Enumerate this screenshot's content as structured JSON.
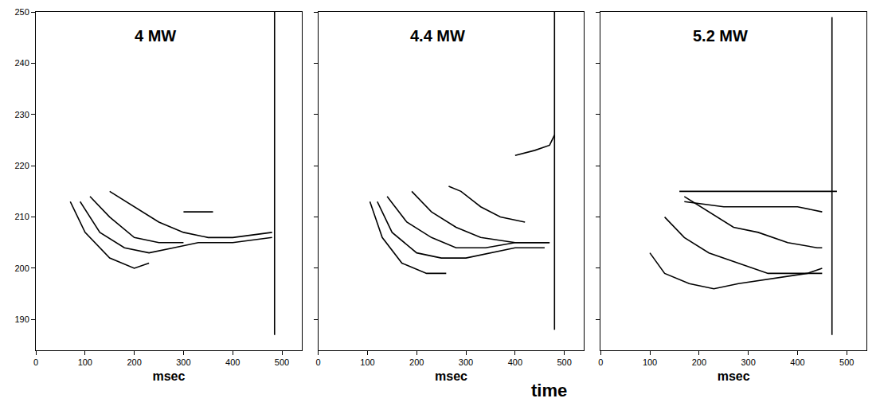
{
  "chart_data": [
    {
      "type": "line",
      "title": "4 MW",
      "xlabel": "msec",
      "color": "#000000",
      "xlim": [
        0,
        540
      ],
      "xticks": [
        0,
        100,
        200,
        300,
        400,
        500
      ],
      "ylim": [
        184,
        250
      ],
      "yticks": [
        190,
        200,
        210,
        220,
        230,
        240,
        250
      ],
      "series": [
        {
          "x": [
            70,
            100,
            150,
            200,
            230
          ],
          "values": [
            213,
            207,
            202,
            200,
            201
          ]
        },
        {
          "x": [
            90,
            130,
            180,
            230,
            280,
            330,
            400,
            480
          ],
          "values": [
            213,
            207,
            204,
            203,
            204,
            205,
            205,
            206
          ]
        },
        {
          "x": [
            110,
            150,
            200,
            250,
            300
          ],
          "values": [
            214,
            210,
            206,
            205,
            205
          ]
        },
        {
          "x": [
            150,
            200,
            250,
            300,
            350,
            400,
            480
          ],
          "values": [
            215,
            212,
            209,
            207,
            206,
            206,
            207
          ]
        },
        {
          "x": [
            300,
            330,
            360
          ],
          "values": [
            211,
            211,
            211
          ]
        },
        {
          "x": [
            485,
            485
          ],
          "values": [
            187,
            250
          ]
        }
      ]
    },
    {
      "type": "line",
      "title": "4.4 MW",
      "xlabel": "msec",
      "color": "#000000",
      "tick_labels": "x",
      "xlim": [
        0,
        540
      ],
      "xticks": [
        0,
        100,
        200,
        300,
        400,
        500
      ],
      "ylim": [
        184,
        250
      ],
      "yticks": [
        190,
        200,
        210,
        220,
        230,
        240,
        250
      ],
      "annotations": [
        {
          "text": "time"
        }
      ],
      "series": [
        {
          "x": [
            105,
            130,
            170,
            220,
            260
          ],
          "values": [
            213,
            206,
            201,
            199,
            199
          ]
        },
        {
          "x": [
            120,
            150,
            200,
            250,
            300,
            350,
            400,
            460
          ],
          "values": [
            213,
            207,
            203,
            202,
            202,
            203,
            204,
            204
          ]
        },
        {
          "x": [
            140,
            180,
            230,
            280,
            340,
            400,
            470
          ],
          "values": [
            214,
            209,
            206,
            204,
            204,
            205,
            205
          ]
        },
        {
          "x": [
            190,
            230,
            280,
            330,
            400,
            470
          ],
          "values": [
            215,
            211,
            208,
            206,
            205,
            205
          ]
        },
        {
          "x": [
            265,
            290,
            330,
            370,
            420
          ],
          "values": [
            216,
            215,
            212,
            210,
            209
          ]
        },
        {
          "x": [
            400,
            440,
            470,
            480
          ],
          "values": [
            222,
            223,
            224,
            226
          ]
        },
        {
          "x": [
            480,
            480
          ],
          "values": [
            188,
            250
          ]
        }
      ]
    },
    {
      "type": "line",
      "title": "5.2 MW",
      "xlabel": "msec",
      "color": "#000000",
      "tick_labels": "x",
      "xlim": [
        0,
        540
      ],
      "xticks": [
        0,
        100,
        200,
        300,
        400,
        500
      ],
      "ylim": [
        184,
        250
      ],
      "yticks": [
        190,
        200,
        210,
        220,
        230,
        240,
        250
      ],
      "series": [
        {
          "x": [
            100,
            130,
            180,
            230,
            280,
            350,
            420,
            450
          ],
          "values": [
            203,
            199,
            197,
            196,
            197,
            198,
            199,
            200
          ]
        },
        {
          "x": [
            130,
            170,
            220,
            280,
            340,
            400,
            450
          ],
          "values": [
            210,
            206,
            203,
            201,
            199,
            199,
            199
          ]
        },
        {
          "x": [
            170,
            220,
            270,
            320,
            380,
            440,
            450
          ],
          "values": [
            214,
            211,
            208,
            207,
            205,
            204,
            204
          ]
        },
        {
          "x": [
            160,
            230,
            300,
            370,
            450,
            480
          ],
          "values": [
            215,
            215,
            215,
            215,
            215,
            215
          ]
        },
        {
          "x": [
            170,
            250,
            330,
            400,
            450
          ],
          "values": [
            213,
            212,
            212,
            212,
            211
          ]
        },
        {
          "x": [
            470,
            470
          ],
          "values": [
            187,
            249
          ]
        }
      ]
    }
  ]
}
